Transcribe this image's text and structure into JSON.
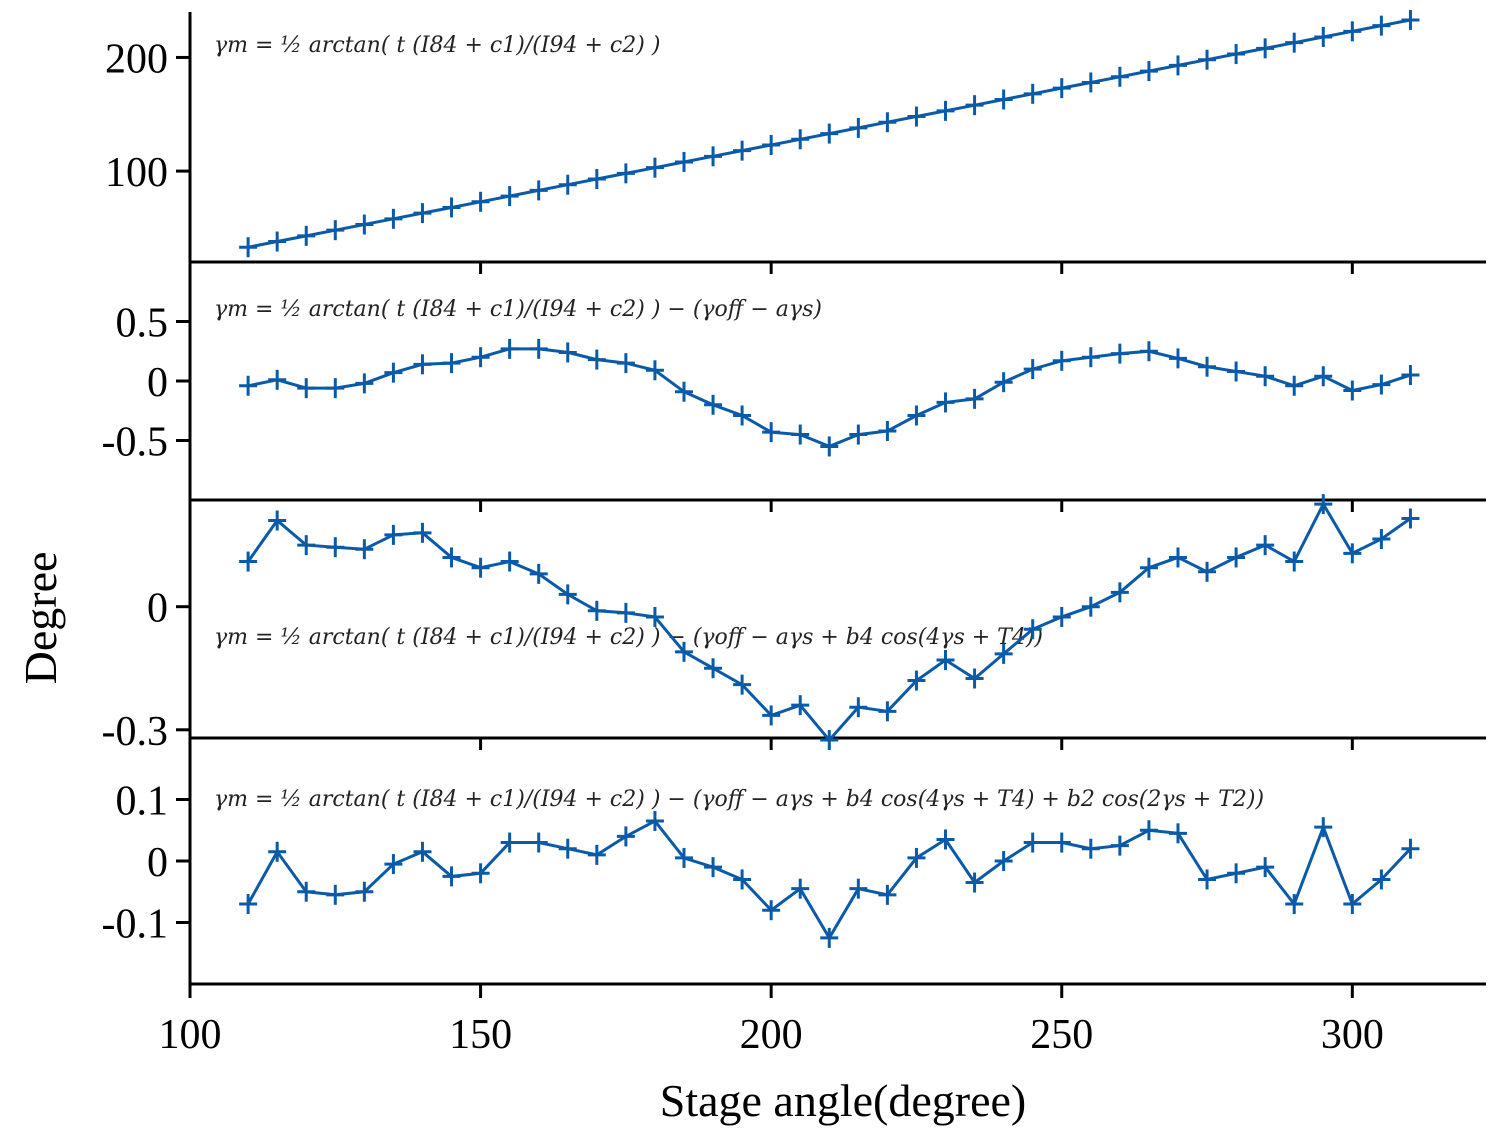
{
  "chart_data": [
    {
      "type": "line",
      "annotation": "γm = ½ arctan( t (I84 + c1)/(I94 + c2) )",
      "xlim": [
        100,
        323
      ],
      "ylim": [
        20,
        240
      ],
      "yticks": [
        100,
        200
      ],
      "ytick_labels": [
        "100",
        "200"
      ],
      "color": "#0a5aa8",
      "series": [
        {
          "x": [
            110,
            115,
            120,
            125,
            130,
            135,
            140,
            145,
            150,
            155,
            160,
            165,
            170,
            175,
            180,
            185,
            190,
            195,
            200,
            205,
            210,
            215,
            220,
            225,
            230,
            235,
            240,
            245,
            250,
            255,
            260,
            265,
            270,
            275,
            280,
            285,
            290,
            295,
            300,
            305,
            310
          ],
          "y": [
            33,
            38,
            43,
            48,
            53,
            58,
            63,
            68,
            73,
            78,
            83,
            88,
            93,
            98,
            103,
            108,
            113,
            118,
            123,
            128,
            133,
            138,
            143,
            148,
            153,
            158,
            163,
            168,
            173,
            178,
            183,
            188,
            193,
            198,
            203,
            208,
            213,
            218,
            223,
            228,
            233
          ]
        }
      ]
    },
    {
      "type": "line",
      "annotation": "γm = ½ arctan( t (I84 + c1)/(I94 + c2) ) − (γoff − aγs)",
      "xlim": [
        100,
        323
      ],
      "ylim": [
        -1.0,
        1.0
      ],
      "yticks": [
        -0.5,
        0,
        0.5
      ],
      "ytick_labels": [
        "-0.5",
        "0",
        "0.5"
      ],
      "color": "#0a5aa8",
      "series": [
        {
          "x": [
            110,
            115,
            120,
            125,
            130,
            135,
            140,
            145,
            150,
            155,
            160,
            165,
            170,
            175,
            180,
            185,
            190,
            195,
            200,
            205,
            210,
            215,
            220,
            225,
            230,
            235,
            240,
            245,
            250,
            255,
            260,
            265,
            270,
            275,
            280,
            285,
            290,
            295,
            300,
            305,
            310
          ],
          "y": [
            -0.04,
            0.01,
            -0.06,
            -0.06,
            -0.02,
            0.07,
            0.14,
            0.15,
            0.2,
            0.27,
            0.27,
            0.24,
            0.18,
            0.15,
            0.09,
            -0.09,
            -0.2,
            -0.29,
            -0.43,
            -0.45,
            -0.55,
            -0.45,
            -0.42,
            -0.29,
            -0.18,
            -0.15,
            -0.01,
            0.1,
            0.17,
            0.2,
            0.23,
            0.25,
            0.19,
            0.12,
            0.08,
            0.04,
            -0.04,
            0.04,
            -0.08,
            -0.03,
            0.05
          ]
        }
      ]
    },
    {
      "type": "line",
      "annotation": "γm = ½ arctan( t (I84 + c1)/(I94 + c2) ) − (γoff − aγs + b4 cos(4γs + T4))",
      "xlim": [
        100,
        323
      ],
      "ylim": [
        -0.32,
        0.26
      ],
      "yticks": [
        -0.3,
        0
      ],
      "ytick_labels": [
        "-0.3",
        "0"
      ],
      "color": "#0a5aa8",
      "series": [
        {
          "x": [
            110,
            115,
            120,
            125,
            130,
            135,
            140,
            145,
            150,
            155,
            160,
            165,
            170,
            175,
            180,
            185,
            190,
            195,
            200,
            205,
            210,
            215,
            220,
            225,
            230,
            235,
            240,
            245,
            250,
            255,
            260,
            265,
            270,
            275,
            280,
            285,
            290,
            295,
            300,
            305,
            310
          ],
          "y": [
            0.11,
            0.21,
            0.15,
            0.145,
            0.14,
            0.175,
            0.18,
            0.12,
            0.095,
            0.11,
            0.08,
            0.03,
            -0.01,
            -0.015,
            -0.025,
            -0.11,
            -0.15,
            -0.19,
            -0.265,
            -0.24,
            -0.325,
            -0.245,
            -0.255,
            -0.18,
            -0.13,
            -0.175,
            -0.115,
            -0.055,
            -0.025,
            0.0,
            0.035,
            0.095,
            0.12,
            0.085,
            0.12,
            0.15,
            0.11,
            0.25,
            0.13,
            0.165,
            0.215
          ]
        }
      ]
    },
    {
      "type": "line",
      "annotation": "γm = ½ arctan( t (I84 + c1)/(I94 + c2) ) − (γoff − aγs + b4 cos(4γs + T4) + b2 cos(2γs + T2))",
      "xlim": [
        100,
        323
      ],
      "ylim": [
        -0.2,
        0.2
      ],
      "yticks": [
        -0.1,
        0,
        0.1
      ],
      "ytick_labels": [
        "-0.1",
        "0",
        "0.1"
      ],
      "color": "#0a5aa8",
      "series": [
        {
          "x": [
            110,
            115,
            120,
            125,
            130,
            135,
            140,
            145,
            150,
            155,
            160,
            165,
            170,
            175,
            180,
            185,
            190,
            195,
            200,
            205,
            210,
            215,
            220,
            225,
            230,
            235,
            240,
            245,
            250,
            255,
            260,
            265,
            270,
            275,
            280,
            285,
            290,
            295,
            300,
            305,
            310
          ],
          "y": [
            -0.07,
            0.015,
            -0.05,
            -0.055,
            -0.05,
            -0.005,
            0.015,
            -0.025,
            -0.02,
            0.03,
            0.03,
            0.02,
            0.01,
            0.04,
            0.065,
            0.005,
            -0.01,
            -0.03,
            -0.08,
            -0.045,
            -0.125,
            -0.045,
            -0.055,
            0.005,
            0.035,
            -0.035,
            0.0,
            0.03,
            0.03,
            0.02,
            0.025,
            0.05,
            0.045,
            -0.03,
            -0.02,
            -0.01,
            -0.07,
            0.055,
            -0.07,
            -0.03,
            0.02
          ]
        }
      ]
    }
  ],
  "x_axis": {
    "label": "Stage angle(degree)",
    "ticks": [
      100,
      150,
      200,
      250,
      300
    ],
    "tick_labels": [
      "100",
      "150",
      "200",
      "250",
      "300"
    ]
  },
  "y_axis": {
    "label": "Degree"
  }
}
